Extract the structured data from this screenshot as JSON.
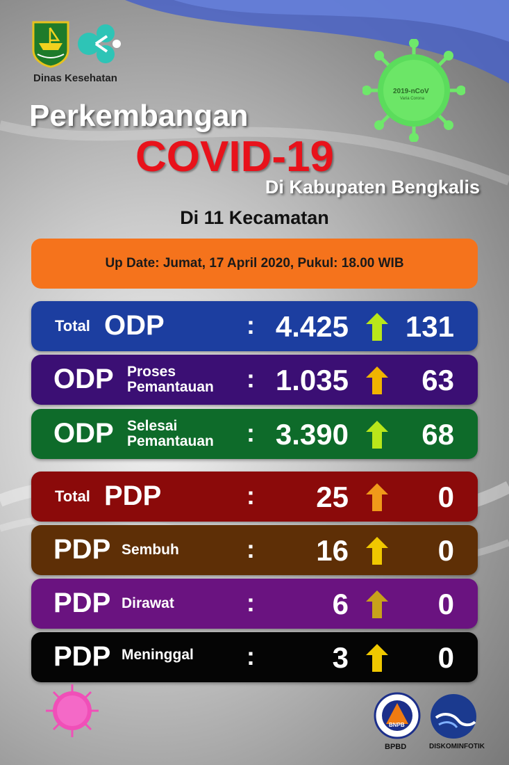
{
  "header": {
    "agency": "Dinas Kesehatan",
    "title_line1": "Perkembangan",
    "title_line2": "COVID-19",
    "title_line3": "Di Kabupaten Bengkalis",
    "subtitle": "Di 11 Kecamatan",
    "virus_label": "2019-nCoV",
    "virus_sublabel": "Varia Corona"
  },
  "update": {
    "text": "Up Date: Jumat, 17 April 2020, Pukul: 18.00 WIB"
  },
  "colors": {
    "accent_red": "#e8121b",
    "update_bar": "#f5731c",
    "total_odp": "#1c3ea0",
    "odp_proses": "#3b0f74",
    "odp_selesai": "#0e6b2a",
    "total_pdp": "#8b0a0a",
    "pdp_sembuh": "#5e2f06",
    "pdp_dirawat": "#6a1380",
    "pdp_meninggal": "#050505"
  },
  "stats": [
    {
      "prefix": "Total",
      "main": "ODP",
      "value": "4.425",
      "delta": "131",
      "arrow_color": "#b9e61a"
    },
    {
      "main": "ODP",
      "sub1": "Proses",
      "sub2": "Pemantauan",
      "value": "1.035",
      "delta": "63",
      "arrow_color": "#f0b400"
    },
    {
      "main": "ODP",
      "sub1": "Selesai",
      "sub2": "Pemantauan",
      "value": "3.390",
      "delta": "68",
      "arrow_color": "#b9e61a"
    },
    {
      "prefix": "Total",
      "main": "PDP",
      "value": "25",
      "delta": "0",
      "arrow_color": "#f09a1a"
    },
    {
      "main": "PDP",
      "sub1": "Sembuh",
      "value": "16",
      "delta": "0",
      "arrow_color": "#f0c800"
    },
    {
      "main": "PDP",
      "sub1": "Dirawat",
      "value": "6",
      "delta": "0",
      "arrow_color": "#c8a21a"
    },
    {
      "main": "PDP",
      "sub1": "Meninggal",
      "value": "3",
      "delta": "0",
      "arrow_color": "#f0c800"
    }
  ],
  "footer": {
    "bnpb_label": "BPBD",
    "bnpb_text": "BNPB",
    "kominfo_label": "DISKOMINFOTIK"
  }
}
